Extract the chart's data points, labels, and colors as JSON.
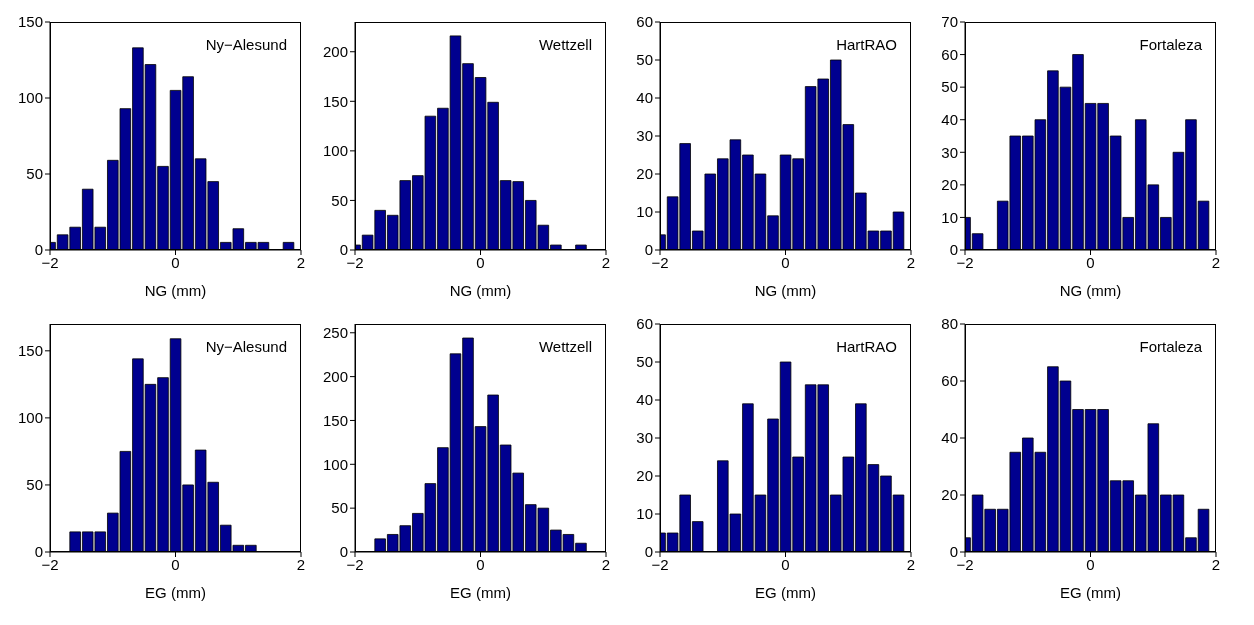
{
  "chart_data": [
    {
      "type": "histogram",
      "annotations": [
        "Ny−Alesund"
      ],
      "xlabel": "NG (mm)",
      "color": "#00008f",
      "bins": [
        -2.1,
        -1.9,
        -1.7,
        -1.5,
        -1.3,
        -1.1,
        -0.9,
        -0.7,
        -0.5,
        -0.3,
        -0.1,
        0.1,
        0.3,
        0.5,
        0.7,
        0.9,
        1.1,
        1.3,
        1.5,
        1.7,
        1.9
      ],
      "values": [
        5,
        10,
        15,
        40,
        15,
        59,
        93,
        133,
        122,
        55,
        105,
        114,
        60,
        45,
        5,
        14,
        5,
        5,
        0,
        5
      ],
      "xlim": [
        -2,
        2
      ],
      "xticks": [
        -2,
        0,
        2
      ],
      "ylim": [
        0,
        150
      ],
      "yticks": [
        0,
        50,
        100,
        150
      ]
    },
    {
      "type": "histogram",
      "annotations": [
        "Wettzell"
      ],
      "xlabel": "NG (mm)",
      "color": "#00008f",
      "bins": [
        -2.1,
        -1.9,
        -1.7,
        -1.5,
        -1.3,
        -1.1,
        -0.9,
        -0.7,
        -0.5,
        -0.3,
        -0.1,
        0.1,
        0.3,
        0.5,
        0.7,
        0.9,
        1.1,
        1.3,
        1.5,
        1.7,
        1.9
      ],
      "values": [
        5,
        15,
        40,
        35,
        70,
        75,
        135,
        143,
        216,
        188,
        174,
        149,
        70,
        69,
        50,
        25,
        5,
        0,
        5,
        0
      ],
      "xlim": [
        -2,
        2
      ],
      "xticks": [
        -2,
        0,
        2
      ],
      "ylim": [
        0,
        230
      ],
      "yticks": [
        0,
        50,
        100,
        150,
        200
      ]
    },
    {
      "type": "histogram",
      "annotations": [
        "HartRAO"
      ],
      "xlabel": "NG (mm)",
      "color": "#00008f",
      "bins": [
        -2.1,
        -1.9,
        -1.7,
        -1.5,
        -1.3,
        -1.1,
        -0.9,
        -0.7,
        -0.5,
        -0.3,
        -0.1,
        0.1,
        0.3,
        0.5,
        0.7,
        0.9,
        1.1,
        1.3,
        1.5,
        1.7,
        1.9
      ],
      "values": [
        4,
        14,
        28,
        5,
        20,
        24,
        29,
        25,
        20,
        9,
        25,
        24,
        43,
        45,
        50,
        33,
        15,
        5,
        5,
        10
      ],
      "xlim": [
        -2,
        2
      ],
      "xticks": [
        -2,
        0,
        2
      ],
      "ylim": [
        0,
        60
      ],
      "yticks": [
        0,
        10,
        20,
        30,
        40,
        50,
        60
      ]
    },
    {
      "type": "histogram",
      "annotations": [
        "Fortaleza"
      ],
      "xlabel": "NG (mm)",
      "color": "#00008f",
      "bins": [
        -2.1,
        -1.9,
        -1.7,
        -1.5,
        -1.3,
        -1.1,
        -0.9,
        -0.7,
        -0.5,
        -0.3,
        -0.1,
        0.1,
        0.3,
        0.5,
        0.7,
        0.9,
        1.1,
        1.3,
        1.5,
        1.7,
        1.9
      ],
      "values": [
        10,
        5,
        0,
        15,
        35,
        35,
        40,
        55,
        50,
        60,
        45,
        45,
        35,
        10,
        40,
        20,
        10,
        30,
        40,
        15
      ],
      "xlim": [
        -2,
        2
      ],
      "xticks": [
        -2,
        0,
        2
      ],
      "ylim": [
        0,
        70
      ],
      "yticks": [
        0,
        10,
        20,
        30,
        40,
        50,
        60,
        70
      ]
    },
    {
      "type": "histogram",
      "annotations": [
        "Ny−Alesund"
      ],
      "xlabel": "EG (mm)",
      "color": "#00008f",
      "bins": [
        -2.1,
        -1.9,
        -1.7,
        -1.5,
        -1.3,
        -1.1,
        -0.9,
        -0.7,
        -0.5,
        -0.3,
        -0.1,
        0.1,
        0.3,
        0.5,
        0.7,
        0.9,
        1.1,
        1.3,
        1.5,
        1.7,
        1.9
      ],
      "values": [
        0,
        0,
        15,
        15,
        15,
        29,
        75,
        144,
        125,
        130,
        159,
        50,
        76,
        52,
        20,
        5,
        5,
        0,
        0,
        0
      ],
      "xlim": [
        -2,
        2
      ],
      "xticks": [
        -2,
        0,
        2
      ],
      "ylim": [
        0,
        170
      ],
      "yticks": [
        0,
        50,
        100,
        150
      ]
    },
    {
      "type": "histogram",
      "annotations": [
        "Wettzell"
      ],
      "xlabel": "EG (mm)",
      "color": "#00008f",
      "bins": [
        -2.1,
        -1.9,
        -1.7,
        -1.5,
        -1.3,
        -1.1,
        -0.9,
        -0.7,
        -0.5,
        -0.3,
        -0.1,
        0.1,
        0.3,
        0.5,
        0.7,
        0.9,
        1.1,
        1.3,
        1.5,
        1.7,
        1.9
      ],
      "values": [
        0,
        0,
        15,
        20,
        30,
        44,
        78,
        119,
        226,
        244,
        143,
        179,
        122,
        90,
        54,
        50,
        25,
        20,
        10,
        0
      ],
      "xlim": [
        -2,
        2
      ],
      "xticks": [
        -2,
        0,
        2
      ],
      "ylim": [
        0,
        260
      ],
      "yticks": [
        0,
        50,
        100,
        150,
        200,
        250
      ]
    },
    {
      "type": "histogram",
      "annotations": [
        "HartRAO"
      ],
      "xlabel": "EG (mm)",
      "color": "#00008f",
      "bins": [
        -2.1,
        -1.9,
        -1.7,
        -1.5,
        -1.3,
        -1.1,
        -0.9,
        -0.7,
        -0.5,
        -0.3,
        -0.1,
        0.1,
        0.3,
        0.5,
        0.7,
        0.9,
        1.1,
        1.3,
        1.5,
        1.7,
        1.9
      ],
      "values": [
        5,
        5,
        15,
        8,
        0,
        24,
        10,
        39,
        15,
        35,
        50,
        25,
        44,
        44,
        15,
        25,
        39,
        23,
        20,
        15
      ],
      "xlim": [
        -2,
        2
      ],
      "xticks": [
        -2,
        0,
        2
      ],
      "ylim": [
        0,
        60
      ],
      "yticks": [
        0,
        10,
        20,
        30,
        40,
        50,
        60
      ]
    },
    {
      "type": "histogram",
      "annotations": [
        "Fortaleza"
      ],
      "xlabel": "EG (mm)",
      "color": "#00008f",
      "bins": [
        -2.1,
        -1.9,
        -1.7,
        -1.5,
        -1.3,
        -1.1,
        -0.9,
        -0.7,
        -0.5,
        -0.3,
        -0.1,
        0.1,
        0.3,
        0.5,
        0.7,
        0.9,
        1.1,
        1.3,
        1.5,
        1.7,
        1.9
      ],
      "values": [
        5,
        20,
        15,
        15,
        35,
        40,
        35,
        65,
        60,
        50,
        50,
        50,
        25,
        25,
        20,
        45,
        20,
        20,
        5,
        15
      ],
      "xlim": [
        -2,
        2
      ],
      "xticks": [
        -2,
        0,
        2
      ],
      "ylim": [
        0,
        80
      ],
      "yticks": [
        0,
        20,
        40,
        60,
        80
      ]
    }
  ]
}
